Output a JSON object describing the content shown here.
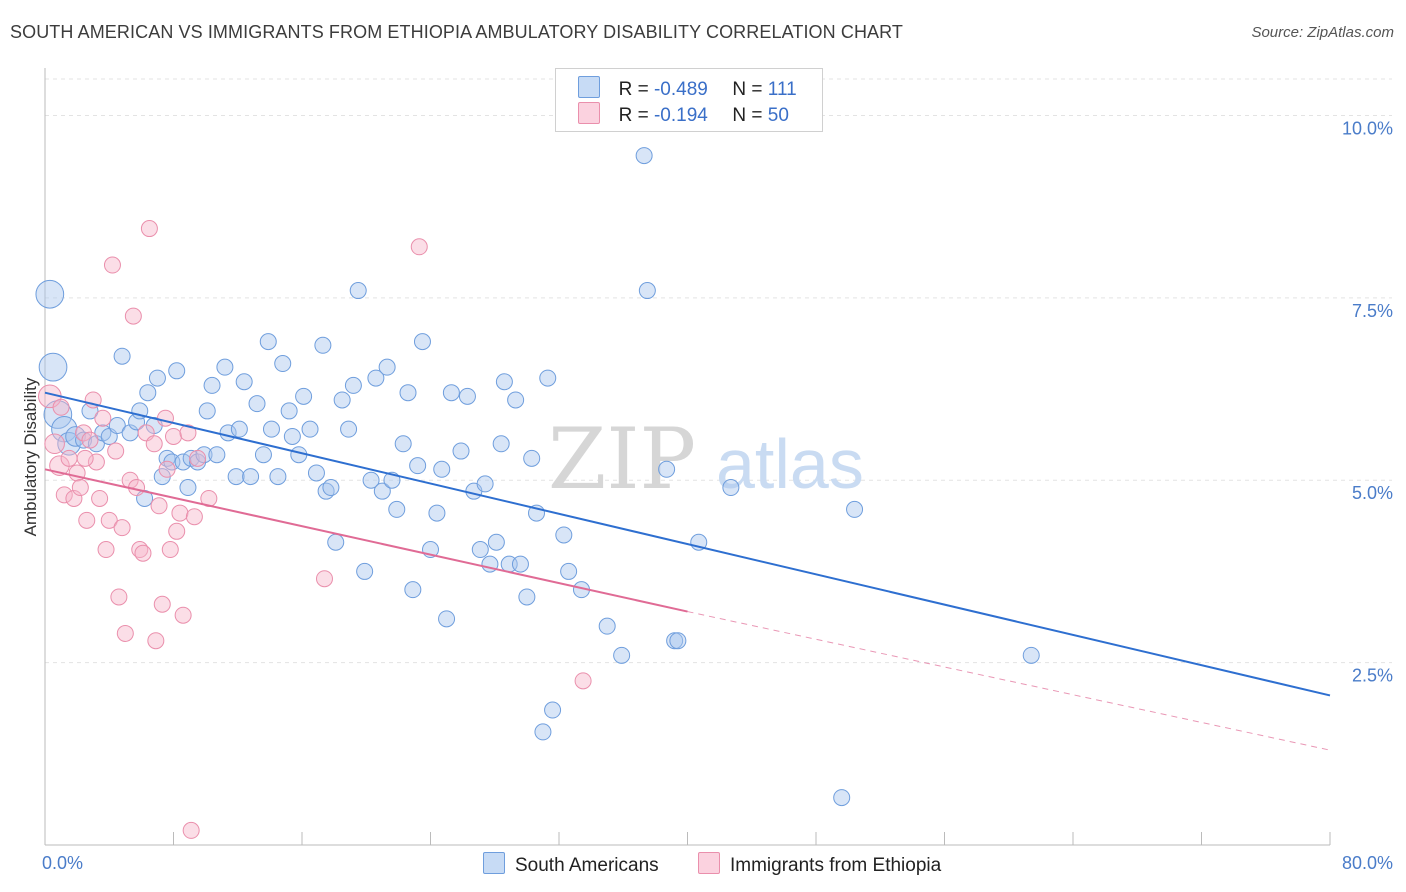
{
  "title": "SOUTH AMERICAN VS IMMIGRANTS FROM ETHIOPIA AMBULATORY DISABILITY CORRELATION CHART",
  "source": "Source: ZipAtlas.com",
  "watermark": {
    "zip": "ZIP",
    "atlas": "atlas"
  },
  "legend": {
    "rows": [
      {
        "r_label": "R =",
        "r_value": "-0.489",
        "n_label": "N =",
        "n_value": "111",
        "color": "#a9c6ee"
      },
      {
        "r_label": "R =",
        "r_value": "-0.194",
        "n_label": "N =",
        "n_value": "50",
        "color": "#f6b5c9"
      }
    ]
  },
  "bottom_legend": [
    {
      "label": "South Americans",
      "color": "#a9c6ee"
    },
    {
      "label": "Immigrants from Ethiopia",
      "color": "#f6b5c9"
    }
  ],
  "chart_data": {
    "type": "scatter",
    "ylabel": "Ambulatory Disability",
    "xlabel": "",
    "xlim": [
      0,
      80
    ],
    "ylim": [
      0,
      10.5
    ],
    "x_tick_labels": [
      "0.0%",
      "80.0%"
    ],
    "y_ticks": [
      {
        "value": 2.5,
        "label": "2.5%"
      },
      {
        "value": 5.0,
        "label": "5.0%"
      },
      {
        "value": 7.5,
        "label": "7.5%"
      },
      {
        "value": 10.0,
        "label": "10.0%"
      }
    ],
    "grid": true,
    "series": [
      {
        "name": "South Americans",
        "color": "#6f9edd",
        "fill": "#a9c6ee",
        "trend": {
          "x": [
            0,
            80
          ],
          "y": [
            6.2,
            2.05
          ],
          "style": "solid"
        },
        "points": [
          [
            0.3,
            7.55,
            3
          ],
          [
            0.5,
            6.55,
            3
          ],
          [
            0.8,
            5.9,
            3
          ],
          [
            1.2,
            5.7,
            2.5
          ],
          [
            1.5,
            5.5,
            2
          ],
          [
            1.9,
            5.6,
            1.5
          ],
          [
            2.4,
            5.55,
            1
          ],
          [
            2.8,
            5.95,
            1
          ],
          [
            3.2,
            5.5,
            1
          ],
          [
            3.6,
            5.65,
            1
          ],
          [
            4.0,
            5.6,
            1
          ],
          [
            4.5,
            5.75,
            1
          ],
          [
            4.8,
            6.7,
            1
          ],
          [
            5.3,
            5.65,
            1
          ],
          [
            5.7,
            5.8,
            1
          ],
          [
            5.9,
            5.95,
            1
          ],
          [
            6.2,
            4.75,
            1
          ],
          [
            6.4,
            6.2,
            1
          ],
          [
            6.8,
            5.75,
            1
          ],
          [
            7.0,
            6.4,
            1
          ],
          [
            7.3,
            5.05,
            1
          ],
          [
            7.6,
            5.3,
            1
          ],
          [
            7.9,
            5.25,
            1
          ],
          [
            8.2,
            6.5,
            1
          ],
          [
            8.6,
            5.25,
            1
          ],
          [
            8.9,
            4.9,
            1
          ],
          [
            9.1,
            5.3,
            1
          ],
          [
            9.5,
            5.25,
            1
          ],
          [
            9.9,
            5.35,
            1
          ],
          [
            10.1,
            5.95,
            1
          ],
          [
            10.4,
            6.3,
            1
          ],
          [
            10.7,
            5.35,
            1
          ],
          [
            11.2,
            6.55,
            1
          ],
          [
            11.4,
            5.65,
            1
          ],
          [
            11.9,
            5.05,
            1
          ],
          [
            12.1,
            5.7,
            1
          ],
          [
            12.4,
            6.35,
            1
          ],
          [
            12.8,
            5.05,
            1
          ],
          [
            13.2,
            6.05,
            1
          ],
          [
            13.6,
            5.35,
            1
          ],
          [
            13.9,
            6.9,
            1
          ],
          [
            14.1,
            5.7,
            1
          ],
          [
            14.5,
            5.05,
            1
          ],
          [
            14.8,
            6.6,
            1
          ],
          [
            15.2,
            5.95,
            1
          ],
          [
            15.4,
            5.6,
            1
          ],
          [
            15.8,
            5.35,
            1
          ],
          [
            16.1,
            6.15,
            1
          ],
          [
            16.5,
            5.7,
            1
          ],
          [
            16.9,
            5.1,
            1
          ],
          [
            17.3,
            6.85,
            1
          ],
          [
            17.5,
            4.85,
            1
          ],
          [
            17.8,
            4.9,
            1
          ],
          [
            18.1,
            4.15,
            1
          ],
          [
            18.5,
            6.1,
            1
          ],
          [
            18.9,
            5.7,
            1
          ],
          [
            19.2,
            6.3,
            1
          ],
          [
            19.5,
            7.6,
            1
          ],
          [
            19.9,
            3.75,
            1
          ],
          [
            20.3,
            5.0,
            1
          ],
          [
            20.6,
            6.4,
            1
          ],
          [
            21.0,
            4.85,
            1
          ],
          [
            21.3,
            6.55,
            1
          ],
          [
            21.6,
            5.0,
            1
          ],
          [
            21.9,
            4.6,
            1
          ],
          [
            22.3,
            5.5,
            1
          ],
          [
            22.6,
            6.2,
            1
          ],
          [
            22.9,
            3.5,
            1
          ],
          [
            23.2,
            5.2,
            1
          ],
          [
            23.5,
            6.9,
            1
          ],
          [
            24.0,
            4.05,
            1
          ],
          [
            24.4,
            4.55,
            1
          ],
          [
            24.7,
            5.15,
            1
          ],
          [
            25.0,
            3.1,
            1
          ],
          [
            25.3,
            6.2,
            1
          ],
          [
            25.9,
            5.4,
            1
          ],
          [
            26.3,
            6.15,
            1
          ],
          [
            26.7,
            4.85,
            1
          ],
          [
            27.1,
            4.05,
            1
          ],
          [
            27.4,
            4.95,
            1
          ],
          [
            27.7,
            3.85,
            1
          ],
          [
            28.1,
            4.15,
            1
          ],
          [
            28.4,
            5.5,
            1
          ],
          [
            28.6,
            6.35,
            1
          ],
          [
            28.9,
            3.85,
            1
          ],
          [
            29.3,
            6.1,
            1
          ],
          [
            29.6,
            3.85,
            1
          ],
          [
            30.0,
            3.4,
            1
          ],
          [
            30.3,
            5.3,
            1
          ],
          [
            30.6,
            4.55,
            1
          ],
          [
            31.0,
            1.55,
            1
          ],
          [
            31.3,
            6.4,
            1
          ],
          [
            31.6,
            1.85,
            1
          ],
          [
            32.3,
            4.25,
            1
          ],
          [
            32.6,
            3.75,
            1
          ],
          [
            33.4,
            3.5,
            1
          ],
          [
            35.0,
            3.0,
            1
          ],
          [
            35.9,
            2.6,
            1
          ],
          [
            37.3,
            9.45,
            1
          ],
          [
            37.5,
            7.6,
            1
          ],
          [
            38.7,
            5.15,
            1
          ],
          [
            39.2,
            2.8,
            1
          ],
          [
            39.4,
            2.8,
            1
          ],
          [
            40.7,
            4.15,
            1
          ],
          [
            42.7,
            4.9,
            1
          ],
          [
            49.6,
            0.65,
            1
          ],
          [
            50.4,
            4.6,
            1
          ],
          [
            61.4,
            2.6,
            1
          ]
        ]
      },
      {
        "name": "Immigrants from Ethiopia",
        "color": "#ea8fac",
        "fill": "#f6b5c9",
        "trend": {
          "x": [
            0,
            40
          ],
          "y": [
            5.15,
            3.2
          ],
          "style": "solid",
          "extended": {
            "x": [
              40,
              80
            ],
            "y": [
              3.2,
              1.3
            ],
            "style": "dashed"
          }
        },
        "points": [
          [
            0.3,
            6.15,
            2
          ],
          [
            0.6,
            5.5,
            1.5
          ],
          [
            0.9,
            5.2,
            1.5
          ],
          [
            1.2,
            4.8,
            1
          ],
          [
            1.5,
            5.3,
            1
          ],
          [
            1.8,
            4.75,
            1
          ],
          [
            2.0,
            5.1,
            1
          ],
          [
            2.2,
            4.9,
            1
          ],
          [
            2.4,
            5.65,
            1
          ],
          [
            2.6,
            4.45,
            1
          ],
          [
            2.8,
            5.55,
            1
          ],
          [
            3.0,
            6.1,
            1
          ],
          [
            3.2,
            5.25,
            1
          ],
          [
            3.4,
            4.75,
            1
          ],
          [
            3.6,
            5.85,
            1
          ],
          [
            3.8,
            4.05,
            1
          ],
          [
            4.0,
            4.45,
            1
          ],
          [
            4.2,
            7.95,
            1
          ],
          [
            4.4,
            5.4,
            1
          ],
          [
            4.6,
            3.4,
            1
          ],
          [
            4.8,
            4.35,
            1
          ],
          [
            5.0,
            2.9,
            1
          ],
          [
            5.3,
            5.0,
            1
          ],
          [
            5.5,
            7.25,
            1
          ],
          [
            5.7,
            4.9,
            1
          ],
          [
            5.9,
            4.05,
            1
          ],
          [
            6.1,
            4.0,
            1
          ],
          [
            6.3,
            5.65,
            1
          ],
          [
            6.5,
            8.45,
            1
          ],
          [
            6.8,
            5.5,
            1
          ],
          [
            6.9,
            2.8,
            1
          ],
          [
            7.1,
            4.65,
            1
          ],
          [
            7.3,
            3.3,
            1
          ],
          [
            7.5,
            5.85,
            1
          ],
          [
            7.6,
            5.15,
            1
          ],
          [
            7.8,
            4.05,
            1
          ],
          [
            8.0,
            5.6,
            1
          ],
          [
            8.2,
            4.3,
            1
          ],
          [
            8.4,
            4.55,
            1
          ],
          [
            8.6,
            3.15,
            1
          ],
          [
            8.9,
            5.65,
            1
          ],
          [
            9.1,
            0.2,
            1
          ],
          [
            9.3,
            4.5,
            1
          ],
          [
            9.5,
            5.3,
            1
          ],
          [
            10.2,
            4.75,
            1
          ],
          [
            17.4,
            3.65,
            1
          ],
          [
            23.3,
            8.2,
            1
          ],
          [
            33.5,
            2.25,
            1
          ],
          [
            1.0,
            6.0,
            1
          ],
          [
            2.5,
            5.3,
            1
          ]
        ]
      }
    ]
  }
}
